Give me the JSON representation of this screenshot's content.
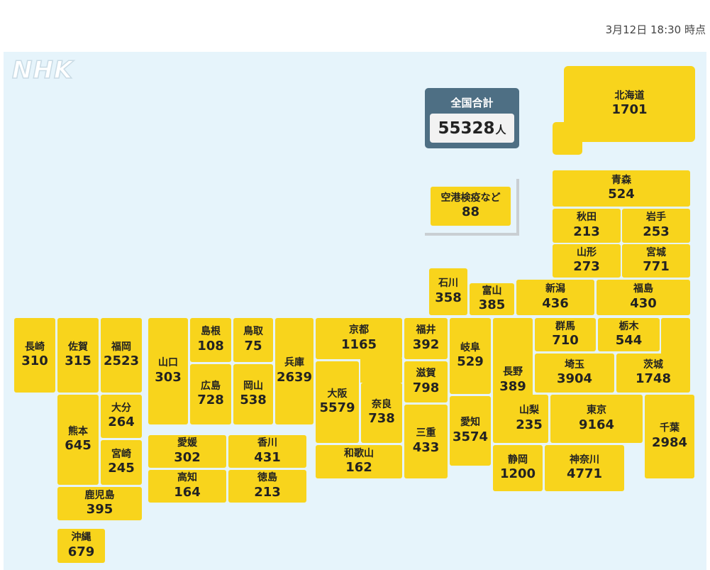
{
  "timestamp": "3月12日 18:30 時点",
  "logo": "NHK",
  "total": {
    "label": "全国合計",
    "value": "55328",
    "unit": "人"
  },
  "airport": {
    "name": "空港検疫など",
    "value": "88"
  },
  "prefectures": [
    {
      "id": "hokkaido",
      "name": "北海道",
      "value": "1701"
    },
    {
      "id": "aomori",
      "name": "青森",
      "value": "524"
    },
    {
      "id": "akita",
      "name": "秋田",
      "value": "213"
    },
    {
      "id": "iwate",
      "name": "岩手",
      "value": "253"
    },
    {
      "id": "yamagata",
      "name": "山形",
      "value": "273"
    },
    {
      "id": "miyagi",
      "name": "宮城",
      "value": "771"
    },
    {
      "id": "ishikawa",
      "name": "石川",
      "value": "358"
    },
    {
      "id": "toyama",
      "name": "富山",
      "value": "385"
    },
    {
      "id": "niigata",
      "name": "新潟",
      "value": "436"
    },
    {
      "id": "fukushima",
      "name": "福島",
      "value": "430"
    },
    {
      "id": "nagasaki",
      "name": "長崎",
      "value": "310"
    },
    {
      "id": "saga",
      "name": "佐賀",
      "value": "315"
    },
    {
      "id": "fukuoka",
      "name": "福岡",
      "value": "2523"
    },
    {
      "id": "yamaguchi",
      "name": "山口",
      "value": "303"
    },
    {
      "id": "shimane",
      "name": "島根",
      "value": "108"
    },
    {
      "id": "tottori",
      "name": "鳥取",
      "value": "75"
    },
    {
      "id": "hyogo",
      "name": "兵庫",
      "value": "2639"
    },
    {
      "id": "kyoto",
      "name": "京都",
      "value": "1165"
    },
    {
      "id": "fukui",
      "name": "福井",
      "value": "392"
    },
    {
      "id": "gifu",
      "name": "岐阜",
      "value": "529"
    },
    {
      "id": "nagano",
      "name": "長野",
      "value": "389"
    },
    {
      "id": "gunma",
      "name": "群馬",
      "value": "710"
    },
    {
      "id": "tochigi",
      "name": "栃木",
      "value": "544"
    },
    {
      "id": "saitama",
      "name": "埼玉",
      "value": "3904"
    },
    {
      "id": "ibaraki",
      "name": "茨城",
      "value": "1748"
    },
    {
      "id": "hiroshima",
      "name": "広島",
      "value": "728"
    },
    {
      "id": "okayama",
      "name": "岡山",
      "value": "538"
    },
    {
      "id": "osaka",
      "name": "大阪",
      "value": "5579"
    },
    {
      "id": "nara",
      "name": "奈良",
      "value": "738"
    },
    {
      "id": "shiga",
      "name": "滋賀",
      "value": "798"
    },
    {
      "id": "mie",
      "name": "三重",
      "value": "433"
    },
    {
      "id": "aichi",
      "name": "愛知",
      "value": "3574"
    },
    {
      "id": "yamanashi",
      "name": "山梨",
      "value": "235"
    },
    {
      "id": "tokyo",
      "name": "東京",
      "value": "9164"
    },
    {
      "id": "chiba",
      "name": "千葉",
      "value": "2984"
    },
    {
      "id": "kumamoto",
      "name": "熊本",
      "value": "645"
    },
    {
      "id": "oita",
      "name": "大分",
      "value": "264"
    },
    {
      "id": "miyazaki",
      "name": "宮崎",
      "value": "245"
    },
    {
      "id": "ehime",
      "name": "愛媛",
      "value": "302"
    },
    {
      "id": "kagawa",
      "name": "香川",
      "value": "431"
    },
    {
      "id": "kochi",
      "name": "高知",
      "value": "164"
    },
    {
      "id": "tokushima",
      "name": "徳島",
      "value": "213"
    },
    {
      "id": "wakayama",
      "name": "和歌山",
      "value": "162"
    },
    {
      "id": "shizuoka",
      "name": "静岡",
      "value": "1200"
    },
    {
      "id": "kanagawa",
      "name": "神奈川",
      "value": "4771"
    },
    {
      "id": "kagoshima",
      "name": "鹿児島",
      "value": "395"
    },
    {
      "id": "okinawa",
      "name": "沖縄",
      "value": "679"
    }
  ],
  "colors": {
    "prefecture": "#f8d41c",
    "background": "#e6f4fb",
    "total_box": "#4e6f84"
  }
}
